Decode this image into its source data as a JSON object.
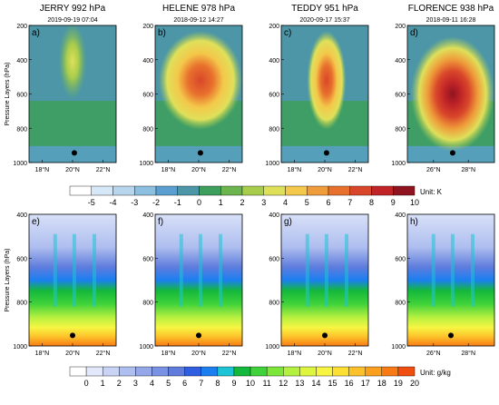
{
  "chart_data": [
    {
      "type": "heatmap",
      "label": "a)",
      "title": "JERRY 992 hPa",
      "time": "2019-09-19 07:04",
      "ylabel": "Pressure Layers (hPa)",
      "yticks": [
        "200",
        "400",
        "600",
        "800",
        "1000"
      ],
      "xticks": [
        "18°N",
        "20°N",
        "22°N"
      ],
      "peak": 3,
      "profile": "weak",
      "row": 0
    },
    {
      "type": "heatmap",
      "label": "b)",
      "title": "HELENE 978 hPa",
      "time": "2018-09-12 14:27",
      "ylabel": "",
      "yticks": [
        "200",
        "400",
        "600",
        "800",
        "1000"
      ],
      "xticks": [
        "18°N",
        "20°N",
        "22°N"
      ],
      "peak": 7,
      "profile": "broad",
      "row": 0
    },
    {
      "type": "heatmap",
      "label": "c)",
      "title": "TEDDY 951 hPa",
      "time": "2020-09-17 15:37",
      "ylabel": "",
      "yticks": [
        "200",
        "400",
        "600",
        "800",
        "1000"
      ],
      "xticks": [
        "18°N",
        "20°N",
        "22°N"
      ],
      "peak": 7,
      "profile": "narrow",
      "row": 0
    },
    {
      "type": "heatmap",
      "label": "d)",
      "title": "FLORENCE 938 hPa",
      "time": "2018-09-11 16:28",
      "ylabel": "",
      "yticks": [
        "200",
        "400",
        "600",
        "800",
        "1000"
      ],
      "xticks": [
        "26°N",
        "28°N"
      ],
      "peak": 10,
      "profile": "strong",
      "row": 0
    },
    {
      "type": "heatmap",
      "label": "e)",
      "ylabel": "Pressure Layers (hPa)",
      "yticks": [
        "400",
        "600",
        "800",
        "1000"
      ],
      "xticks": [
        "18°N",
        "20°N",
        "22°N"
      ],
      "row": 1
    },
    {
      "type": "heatmap",
      "label": "f)",
      "ylabel": "",
      "yticks": [
        "400",
        "600",
        "800",
        "1000"
      ],
      "xticks": [
        "18°N",
        "20°N",
        "22°N"
      ],
      "row": 1
    },
    {
      "type": "heatmap",
      "label": "g)",
      "ylabel": "",
      "yticks": [
        "400",
        "600",
        "800",
        "1000"
      ],
      "xticks": [
        "18°N",
        "20°N",
        "22°N"
      ],
      "row": 1
    },
    {
      "type": "heatmap",
      "label": "h)",
      "ylabel": "",
      "yticks": [
        "400",
        "600",
        "800",
        "1000"
      ],
      "xticks": [
        "26°N",
        "28°N"
      ],
      "row": 1
    }
  ],
  "colorbar_temp": {
    "labels": [
      "-5",
      "-4",
      "-3",
      "-2",
      "-1",
      "0",
      "1",
      "2",
      "3",
      "4",
      "5",
      "6",
      "7",
      "8",
      "9",
      "10"
    ],
    "unit": "Unit: K",
    "colors": [
      "#ffffff",
      "#d6e8f7",
      "#b7d6ee",
      "#8cbfe0",
      "#5b9fd0",
      "#4c96a8",
      "#3e9e5e",
      "#6cb54e",
      "#a8cc4c",
      "#dfe05a",
      "#f4c84a",
      "#ef9c3a",
      "#e8702d",
      "#d9472a",
      "#c02427",
      "#8f1420"
    ]
  },
  "colorbar_q": {
    "labels": [
      "0",
      "1",
      "2",
      "3",
      "4",
      "5",
      "6",
      "7",
      "8",
      "9",
      "10",
      "11",
      "12",
      "13",
      "14",
      "15",
      "16",
      "17",
      "18",
      "19",
      "20"
    ],
    "unit": "Unit: g/kg",
    "colors": [
      "#ffffff",
      "#e3e9fb",
      "#c9d4f5",
      "#aebeef",
      "#94a8e9",
      "#7a92e3",
      "#5f7cdd",
      "#2f5ee0",
      "#1c7ff0",
      "#1dc4d6",
      "#14b83c",
      "#3fd23a",
      "#7ce63a",
      "#b4f040",
      "#def53e",
      "#f7f542",
      "#fbe033",
      "#fcc12a",
      "#fb9f1e",
      "#f87a14",
      "#f04d10"
    ]
  }
}
